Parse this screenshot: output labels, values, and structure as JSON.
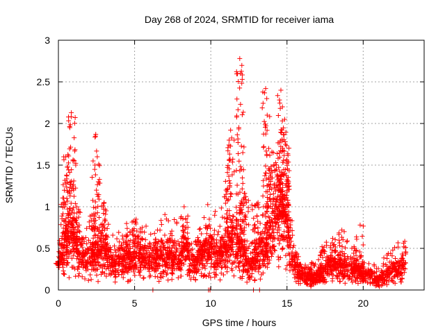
{
  "chart_data": {
    "type": "scatter",
    "title": "Day 268 of 2024, SRMTID for receiver iama",
    "xlabel": "GPS time / hours",
    "ylabel": "SRMTID / TECUs",
    "xlim": [
      0,
      24
    ],
    "ylim": [
      0,
      3
    ],
    "xticks": [
      0,
      5,
      10,
      15,
      20
    ],
    "xtick_labels": [
      "0",
      "5",
      "10",
      "15",
      "20"
    ],
    "yticks": [
      0,
      0.5,
      1,
      1.5,
      2,
      2.5,
      3
    ],
    "ytick_labels": [
      "0",
      "0.5",
      "1",
      "1.5",
      "2",
      "2.5",
      "3"
    ],
    "grid": true,
    "marker": "+",
    "series_color": "#ff0000",
    "baseline": [
      [
        0,
        0.3
      ],
      [
        0.3,
        0.5
      ],
      [
        0.8,
        0.6
      ],
      [
        1.5,
        0.38
      ],
      [
        2.2,
        0.34
      ],
      [
        2.7,
        0.4
      ],
      [
        3,
        0.45
      ],
      [
        3.5,
        0.3
      ],
      [
        4,
        0.32
      ],
      [
        4.5,
        0.36
      ],
      [
        5,
        0.36
      ],
      [
        5.5,
        0.38
      ],
      [
        6,
        0.35
      ],
      [
        6.5,
        0.36
      ],
      [
        7,
        0.38
      ],
      [
        7.5,
        0.36
      ],
      [
        8,
        0.35
      ],
      [
        8.3,
        0.5
      ],
      [
        8.6,
        0.33
      ],
      [
        9,
        0.32
      ],
      [
        9.5,
        0.45
      ],
      [
        10,
        0.42
      ],
      [
        10.5,
        0.4
      ],
      [
        11,
        0.48
      ],
      [
        11.5,
        0.55
      ],
      [
        12,
        0.45
      ],
      [
        12.5,
        0.25
      ],
      [
        13,
        0.35
      ],
      [
        13.5,
        0.45
      ],
      [
        14,
        0.65
      ],
      [
        14.5,
        0.9
      ],
      [
        15,
        0.75
      ],
      [
        15.4,
        0.35
      ],
      [
        15.8,
        0.22
      ],
      [
        16.2,
        0.15
      ],
      [
        16.8,
        0.14
      ],
      [
        17.3,
        0.2
      ],
      [
        17.8,
        0.28
      ],
      [
        18.3,
        0.3
      ],
      [
        18.8,
        0.26
      ],
      [
        19.3,
        0.22
      ],
      [
        19.8,
        0.2
      ],
      [
        20.4,
        0.16
      ],
      [
        20.9,
        0.11
      ],
      [
        21.4,
        0.17
      ],
      [
        22,
        0.24
      ],
      [
        22.8,
        0.32
      ]
    ],
    "spikes": [
      [
        0.05,
        0.3
      ],
      [
        0.35,
        1.6
      ],
      [
        0.55,
        1.1
      ],
      [
        0.75,
        1.95
      ],
      [
        0.85,
        2.13
      ],
      [
        0.95,
        1.55
      ],
      [
        1.2,
        1.0
      ],
      [
        1.4,
        0.7
      ],
      [
        2.2,
        0.9
      ],
      [
        2.4,
        1.5
      ],
      [
        2.45,
        1.87
      ],
      [
        2.55,
        1.6
      ],
      [
        3.0,
        1.05
      ],
      [
        3.05,
        0.85
      ],
      [
        4.2,
        0.65
      ],
      [
        4.7,
        0.7
      ],
      [
        5.1,
        0.85
      ],
      [
        5.5,
        0.75
      ],
      [
        6.5,
        0.72
      ],
      [
        7.3,
        0.62
      ],
      [
        8.25,
        1.0
      ],
      [
        8.35,
        0.85
      ],
      [
        9.2,
        0.6
      ],
      [
        9.6,
        0.55
      ],
      [
        9.9,
        0.85
      ],
      [
        10.5,
        0.7
      ],
      [
        11.0,
        1.2
      ],
      [
        11.2,
        1.8
      ],
      [
        11.3,
        1.92
      ],
      [
        11.9,
        2.78
      ],
      [
        11.95,
        2.23
      ],
      [
        12.1,
        1.65
      ],
      [
        12.3,
        1.12
      ],
      [
        12.7,
        1.02
      ],
      [
        13.1,
        1.05
      ],
      [
        13.6,
        2.42
      ],
      [
        13.7,
        2.1
      ],
      [
        13.8,
        1.7
      ],
      [
        14.1,
        1.65
      ],
      [
        14.3,
        1.45
      ],
      [
        14.6,
        2.4
      ],
      [
        14.7,
        2.2
      ],
      [
        14.85,
        2.05
      ],
      [
        14.9,
        1.75
      ],
      [
        15.0,
        1.55
      ],
      [
        15.1,
        1.3
      ],
      [
        16.2,
        0.3
      ],
      [
        16.7,
        0.32
      ],
      [
        17.3,
        0.52
      ],
      [
        18.0,
        0.62
      ],
      [
        18.6,
        0.72
      ],
      [
        19.4,
        0.52
      ],
      [
        19.8,
        0.78
      ]
    ],
    "zero_points": [
      6.2,
      9.85,
      9.95,
      12.8,
      13.2
    ]
  }
}
